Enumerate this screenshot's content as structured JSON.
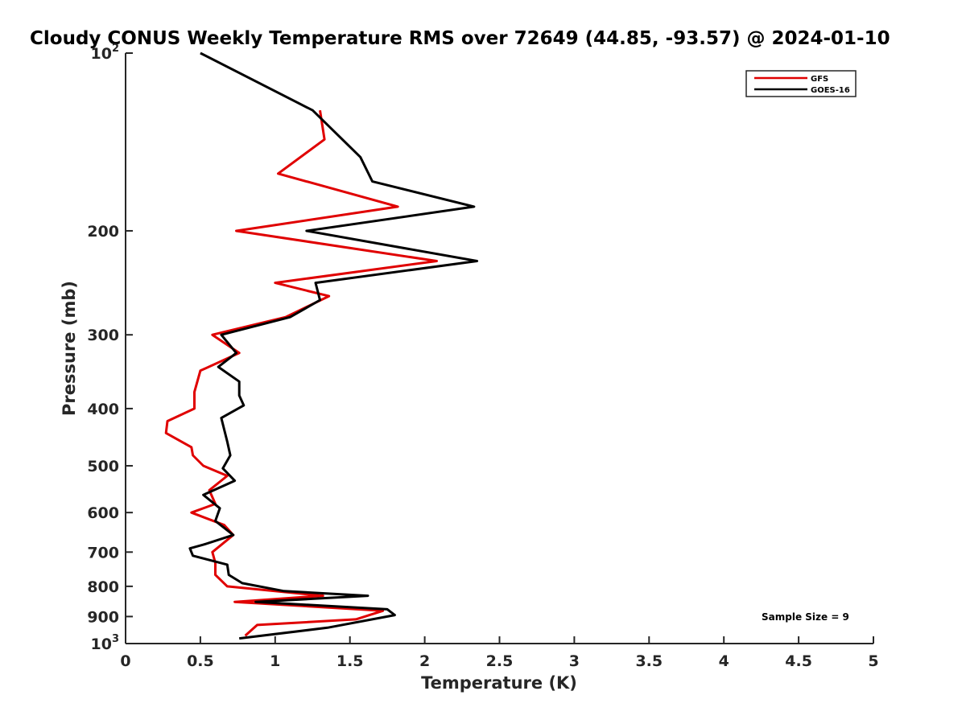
{
  "chart_data": {
    "type": "line",
    "title": "Cloudy CONUS Weekly Temperature RMS over 72649 (44.85, -93.57) @ 2024-01-10",
    "xlabel": "Temperature (K)",
    "ylabel": "Pressure (mb)",
    "xlim": [
      0,
      5
    ],
    "ylim": [
      100,
      1000
    ],
    "y_scale": "log",
    "y_reversed": true,
    "grid": false,
    "legend_position": "top-right",
    "x_ticks": [
      "0",
      "0.5",
      "1",
      "1.5",
      "2",
      "2.5",
      "3",
      "3.5",
      "4",
      "4.5",
      "5"
    ],
    "y_ticks": [
      {
        "value": 100,
        "base": "10",
        "exp": "2"
      },
      {
        "value": 200,
        "label": "200"
      },
      {
        "value": 300,
        "label": "300"
      },
      {
        "value": 400,
        "label": "400"
      },
      {
        "value": 500,
        "label": "500"
      },
      {
        "value": 600,
        "label": "600"
      },
      {
        "value": 700,
        "label": "700"
      },
      {
        "value": 800,
        "label": "800"
      },
      {
        "value": 900,
        "label": "900"
      },
      {
        "value": 1000,
        "base": "10",
        "exp": "3"
      }
    ],
    "annotation": "Sample Size = 9",
    "series": [
      {
        "name": "GFS",
        "color": "#e00000",
        "points": [
          [
            1.3,
            125
          ],
          [
            1.33,
            140
          ],
          [
            1.02,
            160
          ],
          [
            1.82,
            182
          ],
          [
            0.74,
            200
          ],
          [
            2.08,
            225
          ],
          [
            1.0,
            245
          ],
          [
            1.36,
            258
          ],
          [
            1.07,
            280
          ],
          [
            0.58,
            300
          ],
          [
            0.76,
            322
          ],
          [
            0.5,
            345
          ],
          [
            0.46,
            375
          ],
          [
            0.46,
            400
          ],
          [
            0.28,
            420
          ],
          [
            0.27,
            440
          ],
          [
            0.44,
            465
          ],
          [
            0.45,
            480
          ],
          [
            0.52,
            500
          ],
          [
            0.68,
            520
          ],
          [
            0.56,
            550
          ],
          [
            0.6,
            580
          ],
          [
            0.44,
            600
          ],
          [
            0.66,
            630
          ],
          [
            0.72,
            655
          ],
          [
            0.58,
            700
          ],
          [
            0.6,
            730
          ],
          [
            0.6,
            765
          ],
          [
            0.68,
            800
          ],
          [
            1.32,
            830
          ],
          [
            0.73,
            850
          ],
          [
            1.72,
            880
          ],
          [
            1.54,
            910
          ],
          [
            0.88,
            930
          ],
          [
            0.8,
            970
          ]
        ]
      },
      {
        "name": "GOES-16",
        "color": "#000000",
        "points": [
          [
            0.5,
            100
          ],
          [
            1.25,
            125
          ],
          [
            1.57,
            150
          ],
          [
            1.65,
            165
          ],
          [
            2.33,
            182
          ],
          [
            1.21,
            200
          ],
          [
            2.35,
            225
          ],
          [
            1.27,
            245
          ],
          [
            1.3,
            262
          ],
          [
            1.1,
            280
          ],
          [
            0.64,
            300
          ],
          [
            0.74,
            322
          ],
          [
            0.62,
            340
          ],
          [
            0.76,
            360
          ],
          [
            0.76,
            380
          ],
          [
            0.79,
            395
          ],
          [
            0.64,
            415
          ],
          [
            0.68,
            455
          ],
          [
            0.7,
            480
          ],
          [
            0.65,
            505
          ],
          [
            0.73,
            530
          ],
          [
            0.52,
            560
          ],
          [
            0.63,
            590
          ],
          [
            0.6,
            620
          ],
          [
            0.72,
            655
          ],
          [
            0.52,
            680
          ],
          [
            0.43,
            690
          ],
          [
            0.45,
            710
          ],
          [
            0.68,
            735
          ],
          [
            0.69,
            765
          ],
          [
            0.78,
            790
          ],
          [
            1.06,
            815
          ],
          [
            1.62,
            830
          ],
          [
            0.87,
            850
          ],
          [
            1.75,
            875
          ],
          [
            1.8,
            895
          ],
          [
            1.35,
            940
          ],
          [
            0.76,
            980
          ]
        ]
      }
    ]
  }
}
